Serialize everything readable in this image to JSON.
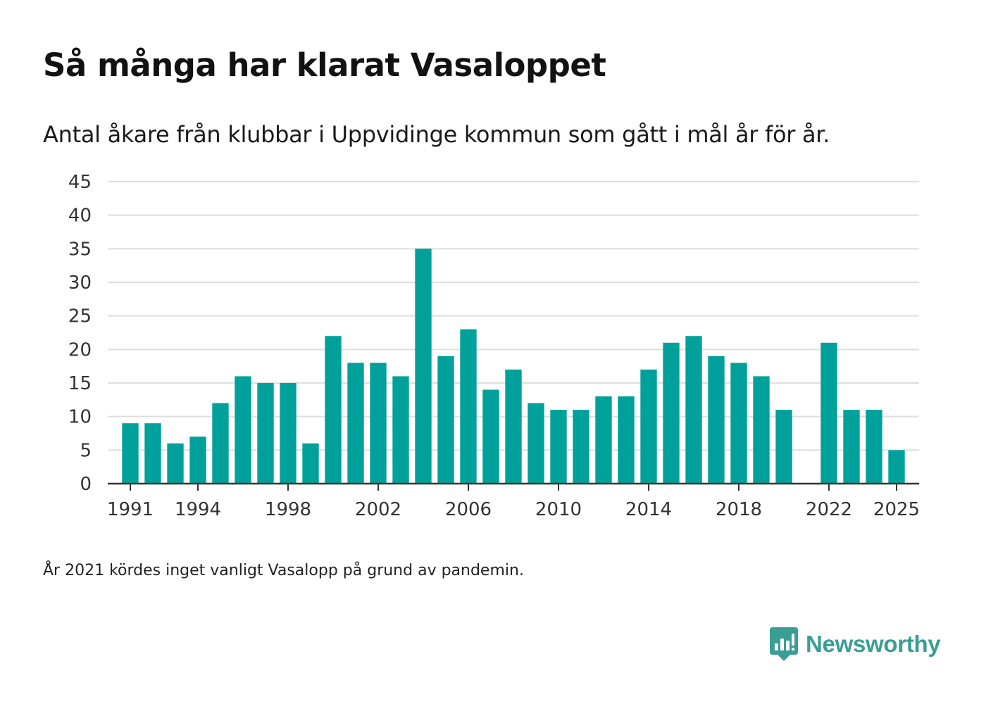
{
  "header": {
    "title": "Så många har klarat Vasaloppet",
    "subtitle": "Antal åkare från klubbar i Uppvidinge kommun som gått i mål år för år."
  },
  "footer": {
    "note": "År 2021 kördes inget vanligt Vasalopp på grund av pandemin.",
    "brand": "Newsworthy"
  },
  "colors": {
    "bar": "#00a19a",
    "grid": "#dedede",
    "axis": "#333333",
    "brand": "#3a9e95"
  },
  "icons": {
    "brand": "newsworthy-logo-icon"
  },
  "chart_data": {
    "type": "bar",
    "title": "Så många har klarat Vasaloppet",
    "subtitle": "Antal åkare från klubbar i Uppvidinge kommun som gått i mål år för år.",
    "xlabel": "",
    "ylabel": "",
    "ylim": [
      0,
      45
    ],
    "yticks": [
      0,
      5,
      10,
      15,
      20,
      25,
      30,
      35,
      40,
      45
    ],
    "x_range": [
      1990,
      2026
    ],
    "xticks": [
      "1991",
      "1994",
      "1998",
      "2002",
      "2006",
      "2010",
      "2014",
      "2018",
      "2022",
      "2025"
    ],
    "categories": [
      1991,
      1992,
      1993,
      1994,
      1995,
      1996,
      1997,
      1998,
      1999,
      2000,
      2001,
      2002,
      2003,
      2004,
      2005,
      2006,
      2007,
      2008,
      2009,
      2010,
      2011,
      2012,
      2013,
      2014,
      2015,
      2016,
      2017,
      2018,
      2019,
      2020,
      2022,
      2023,
      2024,
      2025
    ],
    "values": [
      9,
      9,
      6,
      7,
      12,
      16,
      15,
      15,
      6,
      22,
      18,
      18,
      16,
      35,
      19,
      23,
      14,
      17,
      12,
      11,
      11,
      13,
      13,
      17,
      21,
      22,
      19,
      18,
      16,
      11,
      21,
      11,
      11,
      5
    ],
    "grid": true,
    "legend": "none"
  }
}
